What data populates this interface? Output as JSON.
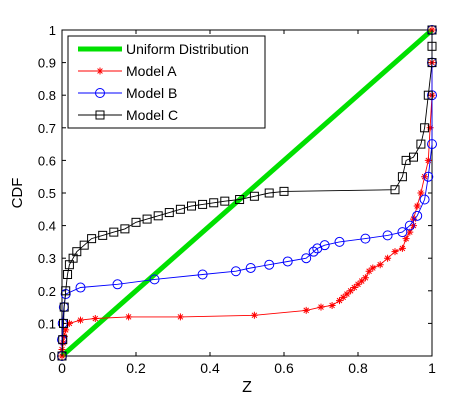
{
  "chart_data": {
    "type": "line",
    "xlabel": "Z",
    "ylabel": "CDF",
    "xlim": [
      0,
      1
    ],
    "ylim": [
      0,
      1
    ],
    "xticks": [
      "0",
      "0.2",
      "0.4",
      "0.6",
      "0.8",
      "1"
    ],
    "yticks": [
      "0",
      "0.1",
      "0.2",
      "0.3",
      "0.4",
      "0.5",
      "0.6",
      "0.7",
      "0.8",
      "0.9",
      "1"
    ],
    "grid": false,
    "legend_position": "top-left",
    "series": [
      {
        "name": "Uniform Distribution",
        "color": "#00e000",
        "marker": "none",
        "x": [
          0,
          1
        ],
        "y": [
          0,
          1
        ]
      },
      {
        "name": "Model A",
        "color": "#ff0000",
        "marker": "star",
        "x": [
          0,
          0,
          0.003,
          0.006,
          0.01,
          0.02,
          0.05,
          0.09,
          0.18,
          0.32,
          0.52,
          0.66,
          0.7,
          0.73,
          0.75,
          0.76,
          0.77,
          0.78,
          0.79,
          0.8,
          0.81,
          0.82,
          0.83,
          0.84,
          0.86,
          0.88,
          0.9,
          0.92,
          0.93,
          0.94,
          0.95,
          0.95,
          0.96,
          0.97,
          0.98,
          0.99,
          0.995,
          1.0,
          1.0,
          1.0
        ],
        "y": [
          0,
          0.02,
          0.04,
          0.06,
          0.08,
          0.1,
          0.11,
          0.115,
          0.12,
          0.12,
          0.125,
          0.14,
          0.15,
          0.155,
          0.17,
          0.18,
          0.19,
          0.2,
          0.21,
          0.22,
          0.23,
          0.24,
          0.26,
          0.27,
          0.28,
          0.3,
          0.32,
          0.33,
          0.36,
          0.38,
          0.4,
          0.42,
          0.46,
          0.5,
          0.55,
          0.6,
          0.7,
          0.8,
          0.9,
          1.0
        ]
      },
      {
        "name": "Model B",
        "color": "#0000ff",
        "marker": "circle",
        "x": [
          0,
          0,
          0.002,
          0.005,
          0.01,
          0.05,
          0.15,
          0.25,
          0.38,
          0.47,
          0.51,
          0.56,
          0.61,
          0.66,
          0.68,
          0.69,
          0.71,
          0.75,
          0.82,
          0.88,
          0.92,
          0.94,
          0.96,
          0.98,
          0.99,
          1.0,
          1.0,
          1.0,
          1.0
        ],
        "y": [
          0,
          0.05,
          0.1,
          0.15,
          0.19,
          0.21,
          0.22,
          0.235,
          0.25,
          0.26,
          0.27,
          0.28,
          0.29,
          0.3,
          0.32,
          0.33,
          0.34,
          0.35,
          0.36,
          0.37,
          0.38,
          0.4,
          0.43,
          0.48,
          0.55,
          0.65,
          0.8,
          0.9,
          1.0
        ]
      },
      {
        "name": "Model C",
        "color": "#000000",
        "marker": "square",
        "x": [
          0,
          0.002,
          0.004,
          0.006,
          0.01,
          0.015,
          0.02,
          0.03,
          0.04,
          0.06,
          0.08,
          0.11,
          0.14,
          0.17,
          0.2,
          0.23,
          0.26,
          0.29,
          0.32,
          0.35,
          0.38,
          0.41,
          0.44,
          0.48,
          0.52,
          0.56,
          0.6,
          0.9,
          0.92,
          0.93,
          0.95,
          0.97,
          0.98,
          0.99,
          1.0,
          1.0,
          1.0
        ],
        "y": [
          0,
          0.05,
          0.1,
          0.15,
          0.2,
          0.25,
          0.28,
          0.3,
          0.32,
          0.34,
          0.36,
          0.37,
          0.38,
          0.39,
          0.41,
          0.42,
          0.43,
          0.44,
          0.45,
          0.46,
          0.465,
          0.47,
          0.475,
          0.48,
          0.49,
          0.5,
          0.505,
          0.51,
          0.55,
          0.6,
          0.61,
          0.65,
          0.7,
          0.8,
          0.9,
          0.95,
          1.0
        ]
      }
    ]
  }
}
